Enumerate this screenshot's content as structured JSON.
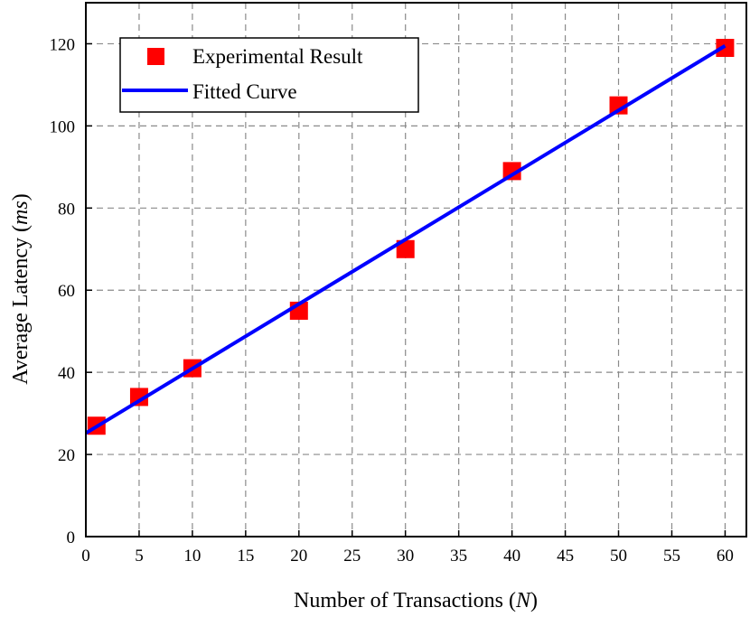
{
  "chart_data": {
    "type": "scatter",
    "xlabel": "Number of Transactions",
    "xlabel_unit": "N",
    "ylabel": "Average Latency",
    "ylabel_unit": "ms",
    "xlim": [
      0,
      62
    ],
    "ylim": [
      0,
      130
    ],
    "xticks": [
      0,
      5,
      10,
      15,
      20,
      25,
      30,
      35,
      40,
      45,
      50,
      55,
      60
    ],
    "yticks": [
      0,
      20,
      40,
      60,
      80,
      100,
      120
    ],
    "grid": true,
    "legend_position": "top-left",
    "series": [
      {
        "name": "Experimental Result",
        "kind": "scatter",
        "marker": "square",
        "color": "#ff0000",
        "x": [
          1,
          5,
          10,
          20,
          30,
          40,
          50,
          60
        ],
        "y": [
          27,
          34,
          41,
          55,
          70,
          89,
          105,
          119
        ]
      },
      {
        "name": "Fitted Curve",
        "kind": "line",
        "color": "#0000ff",
        "x": [
          0,
          60
        ],
        "y": [
          25.2,
          119.5
        ]
      }
    ]
  }
}
